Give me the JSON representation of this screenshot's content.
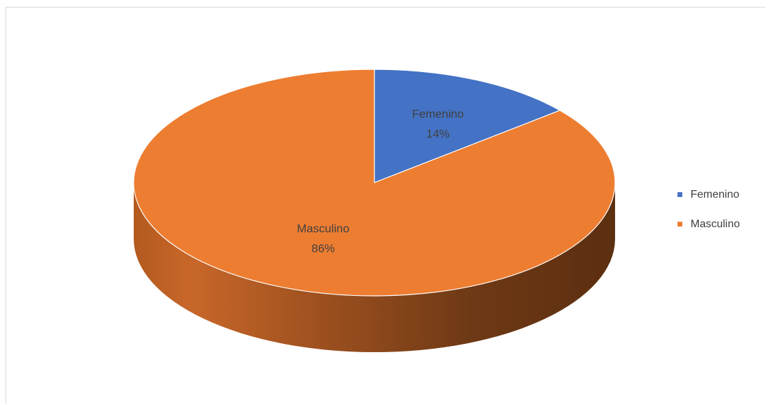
{
  "chart_data": {
    "type": "pie",
    "style": "3d",
    "title": "",
    "slices": [
      {
        "name": "Femenino",
        "value": 14,
        "label": "14%",
        "color": "#4472c4"
      },
      {
        "name": "Masculino",
        "value": 86,
        "label": "86%",
        "color": "#ed7d31"
      }
    ],
    "legend": {
      "position": "right",
      "items": [
        "Femenino",
        "Masculino"
      ]
    }
  }
}
